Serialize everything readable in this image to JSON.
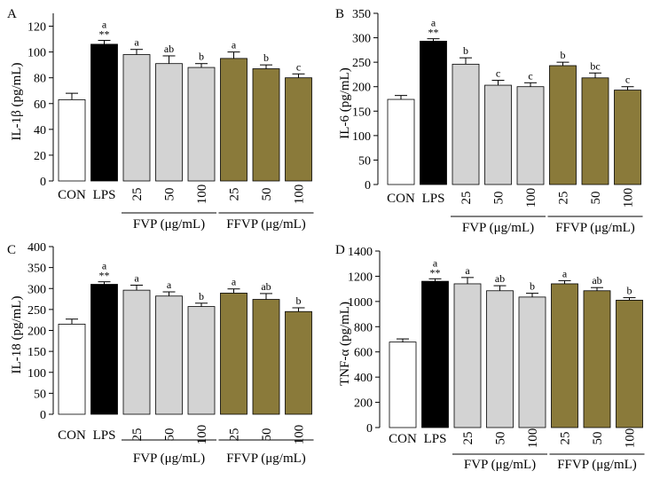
{
  "chart_data": [
    {
      "type": "bar",
      "panel_label": "A",
      "ylabel": "IL-1β (pg/mL)",
      "ylim": [
        0,
        130
      ],
      "yticks": [
        0,
        20,
        40,
        60,
        80,
        100,
        120
      ],
      "categories": [
        "CON",
        "LPS",
        "25",
        "50",
        "100",
        "25",
        "50",
        "100"
      ],
      "values": [
        63,
        106,
        98,
        91,
        88,
        95,
        87,
        80
      ],
      "errors": [
        5,
        3,
        4,
        6,
        3,
        5,
        3,
        3
      ],
      "fill_keys": [
        "con",
        "lps",
        "fvp",
        "fvp",
        "fvp",
        "ffvp",
        "ffvp",
        "ffvp"
      ],
      "sig_letters": [
        "",
        "a",
        "a",
        "ab",
        "b",
        "a",
        "b",
        "c"
      ],
      "stars": [
        "",
        "**",
        "",
        "",
        "",
        "",
        "",
        ""
      ],
      "group_labels": [
        "FVP (μg/mL)",
        "FFVP (μg/mL)"
      ]
    },
    {
      "type": "bar",
      "panel_label": "B",
      "ylabel": "IL-6 (pg/mL)",
      "ylim": [
        0,
        350
      ],
      "yticks": [
        0,
        50,
        100,
        150,
        200,
        250,
        300,
        350
      ],
      "categories": [
        "CON",
        "LPS",
        "25",
        "50",
        "100",
        "25",
        "50",
        "100"
      ],
      "values": [
        174,
        293,
        246,
        203,
        200,
        243,
        218,
        193
      ],
      "errors": [
        8,
        5,
        13,
        10,
        8,
        7,
        10,
        7
      ],
      "fill_keys": [
        "con",
        "lps",
        "fvp",
        "fvp",
        "fvp",
        "ffvp",
        "ffvp",
        "ffvp"
      ],
      "sig_letters": [
        "",
        "a",
        "b",
        "c",
        "c",
        "b",
        "bc",
        "c"
      ],
      "stars": [
        "",
        "**",
        "",
        "",
        "",
        "",
        "",
        ""
      ],
      "group_labels": [
        "FVP (μg/mL)",
        "FFVP (μg/mL)"
      ]
    },
    {
      "type": "bar",
      "panel_label": "C",
      "ylabel": "IL-18 (pg/mL)",
      "ylim": [
        0,
        400
      ],
      "yticks": [
        0,
        50,
        100,
        150,
        200,
        250,
        300,
        350,
        400
      ],
      "categories": [
        "CON",
        "LPS",
        "25",
        "50",
        "100",
        "25",
        "50",
        "100"
      ],
      "values": [
        215,
        310,
        296,
        282,
        257,
        289,
        274,
        245
      ],
      "errors": [
        12,
        6,
        12,
        10,
        8,
        10,
        14,
        9
      ],
      "fill_keys": [
        "con",
        "lps",
        "fvp",
        "fvp",
        "fvp",
        "ffvp",
        "ffvp",
        "ffvp"
      ],
      "sig_letters": [
        "",
        "a",
        "a",
        "a",
        "b",
        "a",
        "ab",
        "b"
      ],
      "stars": [
        "",
        "**",
        "",
        "",
        "",
        "",
        "",
        ""
      ],
      "group_labels": [
        "FVP (μg/mL)",
        "FFVP (μg/mL)"
      ]
    },
    {
      "type": "bar",
      "panel_label": "D",
      "ylabel": "TNF-α (pg/mL)",
      "ylim": [
        0,
        1400
      ],
      "yticks": [
        0,
        200,
        400,
        600,
        800,
        1000,
        1200,
        1400
      ],
      "categories": [
        "CON",
        "LPS",
        "25",
        "50",
        "100",
        "25",
        "50",
        "100"
      ],
      "values": [
        678,
        1160,
        1140,
        1085,
        1035,
        1140,
        1085,
        1010
      ],
      "errors": [
        25,
        20,
        50,
        40,
        30,
        25,
        25,
        20
      ],
      "fill_keys": [
        "con",
        "lps",
        "fvp",
        "fvp",
        "fvp",
        "ffvp",
        "ffvp",
        "ffvp"
      ],
      "sig_letters": [
        "",
        "a",
        "a",
        "ab",
        "b",
        "a",
        "ab",
        "b"
      ],
      "stars": [
        "",
        "**",
        "",
        "",
        "",
        "",
        "",
        ""
      ],
      "group_labels": [
        "FVP (μg/mL)",
        "FFVP (μg/mL)"
      ]
    }
  ],
  "colors": {
    "con": "#ffffff",
    "lps": "#000000",
    "fvp": "#d3d3d3",
    "ffvp": "#8a7a3a"
  }
}
